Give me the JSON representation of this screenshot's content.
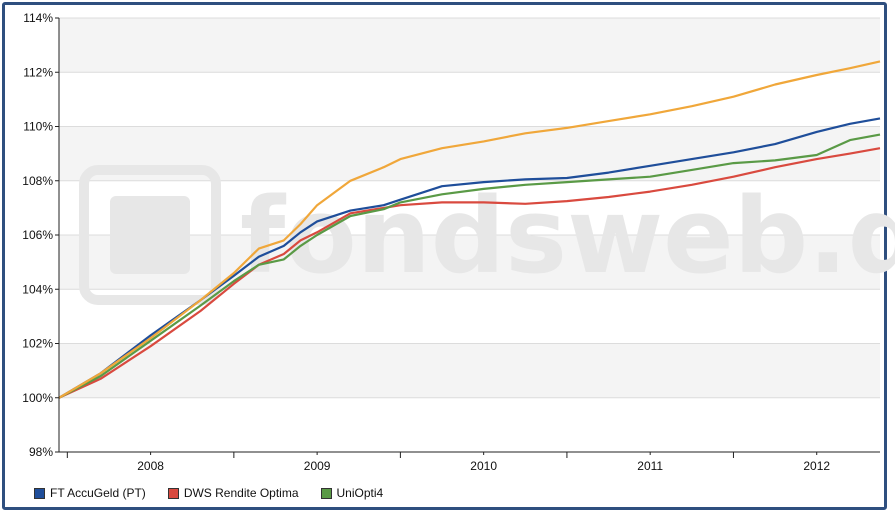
{
  "chart_data": {
    "type": "line",
    "title": "",
    "xlabel": "",
    "ylabel": "",
    "ylim": [
      98,
      114
    ],
    "yticks": [
      "98%",
      "100%",
      "102%",
      "104%",
      "106%",
      "108%",
      "110%",
      "112%",
      "114%"
    ],
    "x_tick_labels": [
      "2008",
      "2009",
      "2010",
      "2011",
      "2012"
    ],
    "xlim": [
      2007.45,
      2012.38
    ],
    "watermark": "fondsweb.de",
    "grid": true,
    "legend_position": "bottom-left",
    "x": [
      2007.45,
      2007.7,
      2008.0,
      2008.3,
      2008.5,
      2008.65,
      2008.8,
      2008.9,
      2009.0,
      2009.2,
      2009.4,
      2009.5,
      2009.75,
      2010.0,
      2010.25,
      2010.5,
      2010.75,
      2011.0,
      2011.25,
      2011.5,
      2011.75,
      2012.0,
      2012.2,
      2012.38
    ],
    "series": [
      {
        "name": "FT AccuGeld (PT)",
        "color": "#1f4e9a",
        "values": [
          100.0,
          100.9,
          102.3,
          103.6,
          104.5,
          105.2,
          105.6,
          106.1,
          106.5,
          106.9,
          107.1,
          107.3,
          107.8,
          107.95,
          108.05,
          108.1,
          108.3,
          108.55,
          108.8,
          109.05,
          109.35,
          109.8,
          110.1,
          110.3
        ]
      },
      {
        "name": "DWS Rendite Optima",
        "color": "#d94a3f",
        "values": [
          100.0,
          100.7,
          101.9,
          103.2,
          104.2,
          104.9,
          105.3,
          105.8,
          106.1,
          106.8,
          107.0,
          107.1,
          107.2,
          107.2,
          107.15,
          107.25,
          107.4,
          107.6,
          107.85,
          108.15,
          108.5,
          108.8,
          109.0,
          109.2
        ]
      },
      {
        "name": "UniOpti4",
        "color": "#5a9a46",
        "values": [
          100.0,
          100.8,
          102.1,
          103.4,
          104.3,
          104.9,
          105.1,
          105.6,
          106.0,
          106.7,
          106.95,
          107.2,
          107.5,
          107.7,
          107.85,
          107.95,
          108.05,
          108.15,
          108.4,
          108.65,
          108.75,
          108.95,
          109.5,
          109.7
        ]
      },
      {
        "name": "",
        "color": "#f0a73a",
        "values": [
          100.0,
          100.9,
          102.2,
          103.6,
          104.6,
          105.5,
          105.8,
          106.4,
          107.1,
          108.0,
          108.5,
          108.8,
          109.2,
          109.45,
          109.75,
          109.95,
          110.2,
          110.45,
          110.75,
          111.1,
          111.55,
          111.9,
          112.15,
          112.4
        ]
      }
    ]
  }
}
